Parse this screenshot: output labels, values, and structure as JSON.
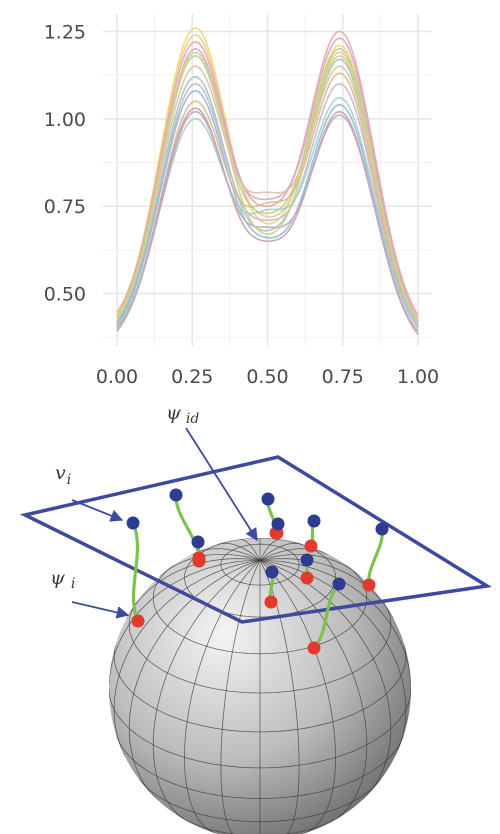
{
  "chart_data": {
    "type": "line",
    "xlim": [
      0,
      1
    ],
    "ylim": [
      0.35,
      1.3
    ],
    "x_ticks": [
      "0.00",
      "0.25",
      "0.50",
      "0.75",
      "1.00"
    ],
    "y_ticks": [
      "0.50",
      "0.75",
      "1.00",
      "1.25"
    ],
    "grid": true,
    "legend": "none",
    "series_shape": "bimodal curves with peaks near x=0.25 and x=0.75, trough near x=0.5",
    "curves": [
      {
        "color": "#e9d96b",
        "start": 0.37,
        "peak1": 1.26,
        "trough": 0.7,
        "peak2": 1.21,
        "end": 0.36
      },
      {
        "color": "#f0c88a",
        "start": 0.36,
        "peak1": 1.24,
        "trough": 0.72,
        "peak2": 1.19,
        "end": 0.35
      },
      {
        "color": "#e6a6a6",
        "start": 0.38,
        "peak1": 1.22,
        "trough": 0.75,
        "peak2": 1.25,
        "end": 0.37
      },
      {
        "color": "#d9a3c4",
        "start": 0.35,
        "peak1": 1.2,
        "trough": 0.77,
        "peak2": 1.23,
        "end": 0.36
      },
      {
        "color": "#b6cf8f",
        "start": 0.37,
        "peak1": 1.18,
        "trough": 0.73,
        "peak2": 1.2,
        "end": 0.35
      },
      {
        "color": "#9fc9b5",
        "start": 0.36,
        "peak1": 1.12,
        "trough": 0.68,
        "peak2": 1.17,
        "end": 0.34
      },
      {
        "color": "#c7b4d6",
        "start": 0.35,
        "peak1": 1.1,
        "trough": 0.71,
        "peak2": 1.1,
        "end": 0.35
      },
      {
        "color": "#8fbad8",
        "start": 0.36,
        "peak1": 1.08,
        "trough": 0.66,
        "peak2": 1.04,
        "end": 0.35
      },
      {
        "color": "#d9b98c",
        "start": 0.34,
        "peak1": 1.05,
        "trough": 0.76,
        "peak2": 1.13,
        "end": 0.34
      },
      {
        "color": "#c9a0a0",
        "start": 0.35,
        "peak1": 1.03,
        "trough": 0.65,
        "peak2": 1.02,
        "end": 0.33
      },
      {
        "color": "#a4d0c0",
        "start": 0.36,
        "peak1": 1.0,
        "trough": 0.74,
        "peak2": 1.06,
        "end": 0.35
      },
      {
        "color": "#e0c0a0",
        "start": 0.37,
        "peak1": 1.15,
        "trough": 0.79,
        "peak2": 1.15,
        "end": 0.36
      },
      {
        "color": "#bfa3c8",
        "start": 0.34,
        "peak1": 1.02,
        "trough": 0.69,
        "peak2": 1.01,
        "end": 0.34
      },
      {
        "color": "#cfd08a",
        "start": 0.36,
        "peak1": 1.19,
        "trough": 0.67,
        "peak2": 1.18,
        "end": 0.36
      }
    ]
  },
  "diagram": {
    "labels": {
      "psi_id": {
        "main": "ψ",
        "sub": "id"
      },
      "v_i": {
        "main": "v",
        "sub": "i"
      },
      "psi_i": {
        "main": "ψ",
        "sub": "i"
      }
    },
    "colors": {
      "plane": "#3d4aa0",
      "arrow": "#3d4aa0",
      "tangent_point": "#2c3d91",
      "sphere_point": "#e23a2c",
      "connector": "#7cc24d",
      "sphere_light": "#f2f2f2",
      "sphere_dark": "#6a6a6a",
      "grid_lines": "#3c3c3c"
    }
  }
}
